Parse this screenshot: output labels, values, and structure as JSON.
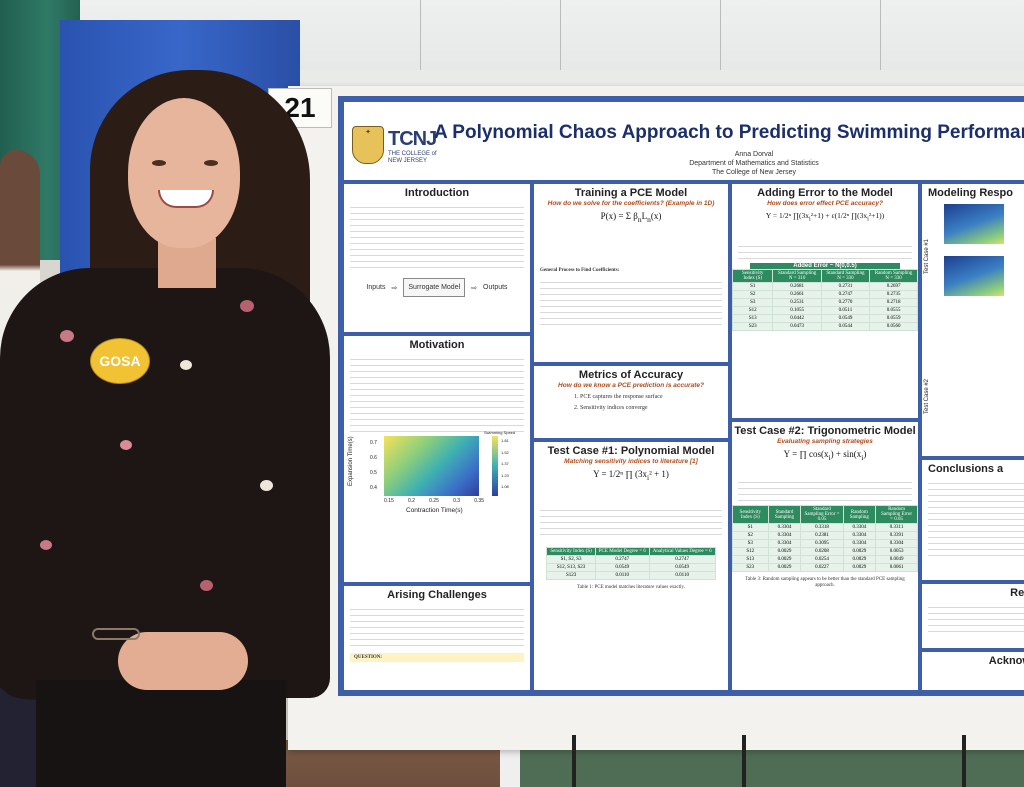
{
  "board_number": "21",
  "poster": {
    "logo": {
      "name": "TCNJ",
      "subtitle": "THE COLLEGE of NEW JERSEY"
    },
    "title": "A Polynomial Chaos Approach to Predicting Swimming Performance",
    "author": "Anna Dorval",
    "department": "Department of Mathematics and Statistics",
    "institution": "The College of New Jersey",
    "sections": {
      "introduction": {
        "heading": "Introduction",
        "flow": [
          "Inputs",
          "Surrogate Model",
          "Outputs"
        ]
      },
      "motivation": {
        "heading": "Motivation",
        "xlabel": "Contraction Time(s)",
        "ylabel": "Expansion Time(s)",
        "xticks": [
          "0.15",
          "0.2",
          "0.25",
          "0.3",
          "0.35"
        ],
        "yticks": [
          "0.7",
          "0.6",
          "0.5",
          "0.4"
        ],
        "colorbar_label": "Swimming Speed",
        "colorbar_ticks": [
          "1.81",
          "1.67",
          "1.52",
          "1.37",
          "1.23",
          "1.08"
        ]
      },
      "arising_challenges": {
        "heading": "Arising Challenges",
        "question_label": "QUESTION:"
      },
      "training": {
        "heading": "Training a PCE Model",
        "subheading": "How do we solve for the coefficients? (Example in 1D)",
        "process_title": "General Process to Find Coefficients:"
      },
      "metrics": {
        "heading": "Metrics of Accuracy",
        "subheading": "How do we know a PCE prediction is accurate?",
        "items": [
          "1.  PCE captures the response surface",
          "2.  Sensitivity indices converge"
        ]
      },
      "test1": {
        "heading": "Test Case #1: Polynomial Model",
        "subheading": "Matching sensitivity indices to literature [1]",
        "table_headers": [
          "Sensitivity Index (S)",
          "PCE Model Degree = 6",
          "Analytical Values Degree = 6"
        ],
        "table_rows": [
          [
            "S1, S2, S3",
            "0.2747",
            "0.2747"
          ],
          [
            "S12, S13, S23",
            "0.0549",
            "0.0549"
          ],
          [
            "S123",
            "0.0110",
            "0.0110"
          ]
        ],
        "caption": "Table 1: PCE model matches literature values exactly."
      },
      "adding_error": {
        "heading": "Adding Error to the Model",
        "subheading": "How does error effect PCE accuracy?",
        "table_title": "Added Error ~ N(0,0.5)",
        "table_headers": [
          "Sensitivity Index (S)",
          "Standard Sampling N = 310",
          "Standard Sampling N = 330",
          "Random Sampling N = 330"
        ],
        "table_rows": [
          [
            "S1",
            "0.2681",
            "0.2731",
            "0.2697"
          ],
          [
            "S2",
            "0.2661",
            "0.2747",
            "0.2735"
          ],
          [
            "S3",
            "0.2531",
            "0.2770",
            "0.2718"
          ],
          [
            "S12",
            "0.1055",
            "0.0511",
            "0.0555"
          ],
          [
            "S13",
            "0.0442",
            "0.0549",
            "0.0559"
          ],
          [
            "S23",
            "0.0473",
            "0.0544",
            "0.0560"
          ]
        ]
      },
      "test2": {
        "heading": "Test Case #2: Trigonometric Model",
        "subheading": "Evaluating sampling strategies",
        "table_headers": [
          "Sensitivity Index (S)",
          "Standard Sampling",
          "Standard Sampling Error = 0.05",
          "Random Sampling",
          "Random Sampling Error = 0.05"
        ],
        "table_rows": [
          [
            "S1",
            "0.3304",
            "0.3318",
            "0.3304",
            "0.3311"
          ],
          [
            "S2",
            "0.3304",
            "0.2381",
            "0.3304",
            "0.3391"
          ],
          [
            "S3",
            "0.3304",
            "0.3095",
            "0.3304",
            "0.3304"
          ],
          [
            "S12",
            "0.0029",
            "0.0208",
            "0.0029",
            "0.0053"
          ],
          [
            "S13",
            "0.0029",
            "0.0254",
            "0.0029",
            "0.0049"
          ],
          [
            "S23",
            "0.0029",
            "0.0227",
            "0.0029",
            "0.0061"
          ]
        ],
        "caption": "Table 3: Random sampling appears to be better than the standard PCE sampling approach."
      },
      "modeling": {
        "heading": "Modeling Respo",
        "test_case_1": "Test Case #1",
        "test_case_2": "Test Case #2"
      },
      "conclusions": {
        "heading": "Conclusions a"
      },
      "references": {
        "heading": "Refe"
      },
      "acknowledgements": {
        "heading": "Acknowl"
      }
    }
  },
  "badge_text": "GOSA"
}
